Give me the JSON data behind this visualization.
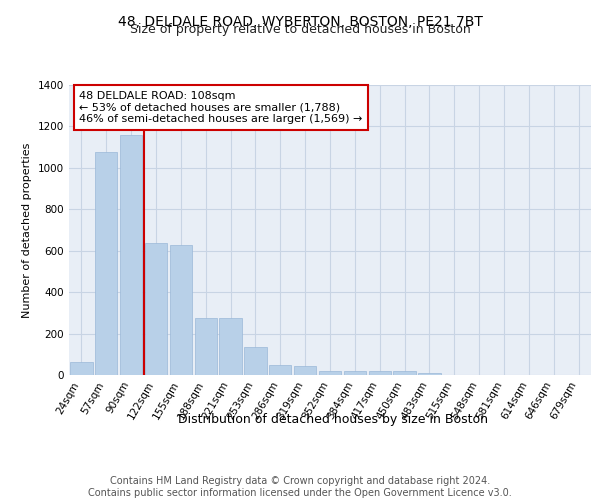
{
  "title": "48, DELDALE ROAD, WYBERTON, BOSTON, PE21 7BT",
  "subtitle": "Size of property relative to detached houses in Boston",
  "xlabel": "Distribution of detached houses by size in Boston",
  "ylabel": "Number of detached properties",
  "categories": [
    "24sqm",
    "57sqm",
    "90sqm",
    "122sqm",
    "155sqm",
    "188sqm",
    "221sqm",
    "253sqm",
    "286sqm",
    "319sqm",
    "352sqm",
    "384sqm",
    "417sqm",
    "450sqm",
    "483sqm",
    "515sqm",
    "548sqm",
    "581sqm",
    "614sqm",
    "646sqm",
    "679sqm"
  ],
  "values": [
    65,
    1075,
    1160,
    635,
    630,
    275,
    275,
    135,
    50,
    45,
    20,
    20,
    20,
    20,
    10,
    0,
    0,
    0,
    0,
    0,
    0
  ],
  "bar_color": "#b8d0e8",
  "bar_edge_color": "#9ab8d8",
  "grid_color": "#c8d4e4",
  "bg_color": "#e8eef6",
  "vline_x": 2.5,
  "vline_color": "#cc0000",
  "annotation_box_text": "48 DELDALE ROAD: 108sqm\n← 53% of detached houses are smaller (1,788)\n46% of semi-detached houses are larger (1,569) →",
  "annotation_box_edge_color": "#cc0000",
  "ylim": [
    0,
    1400
  ],
  "yticks": [
    0,
    200,
    400,
    600,
    800,
    1000,
    1200,
    1400
  ],
  "footer": "Contains HM Land Registry data © Crown copyright and database right 2024.\nContains public sector information licensed under the Open Government Licence v3.0.",
  "title_fontsize": 10,
  "subtitle_fontsize": 9,
  "xlabel_fontsize": 9,
  "ylabel_fontsize": 8,
  "tick_fontsize": 7.5,
  "annotation_fontsize": 8,
  "footer_fontsize": 7
}
